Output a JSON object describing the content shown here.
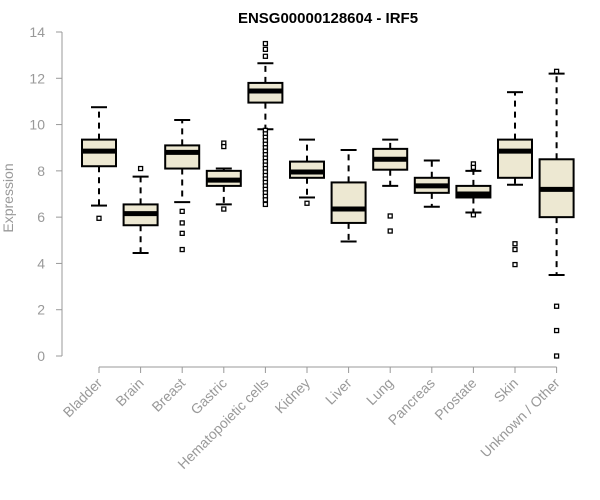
{
  "chart_data": {
    "type": "boxplot",
    "title": "ENSG00000128604 - IRF5",
    "xlabel": "",
    "ylabel": "Expression",
    "ylim": [
      0,
      14
    ],
    "yticks": [
      0,
      2,
      4,
      6,
      8,
      10,
      12,
      14
    ],
    "grid": false,
    "box_fill": "#EDE8D2",
    "box_stroke": "#000000",
    "axis_color": "#999999",
    "categories": [
      "Bladder",
      "Brain",
      "Breast",
      "Gastric",
      "Hematopoietic cells",
      "Kidney",
      "Liver",
      "Lung",
      "Pancreas",
      "Prostate",
      "Skin",
      "Unknown / Other"
    ],
    "boxes": [
      {
        "category": "Bladder",
        "whisker_low": 6.5,
        "q1": 8.2,
        "median": 8.85,
        "q3": 9.35,
        "whisker_high": 10.75,
        "outliers": [
          5.95
        ]
      },
      {
        "category": "Brain",
        "whisker_low": 4.45,
        "q1": 5.65,
        "median": 6.15,
        "q3": 6.55,
        "whisker_high": 7.75,
        "outliers": [
          8.1
        ]
      },
      {
        "category": "Breast",
        "whisker_low": 6.65,
        "q1": 8.1,
        "median": 8.8,
        "q3": 9.1,
        "whisker_high": 10.2,
        "outliers": [
          6.25,
          5.75,
          5.3,
          4.6
        ]
      },
      {
        "category": "Gastric",
        "whisker_low": 6.55,
        "q1": 7.35,
        "median": 7.6,
        "q3": 8.0,
        "whisker_high": 8.1,
        "outliers": [
          9.2,
          9.05,
          6.35
        ]
      },
      {
        "category": "Hematopoietic cells",
        "whisker_low": 9.8,
        "q1": 10.95,
        "median": 11.45,
        "q3": 11.8,
        "whisker_high": 12.65,
        "outliers": [
          13.5,
          13.25,
          12.95,
          9.75,
          9.6,
          9.45,
          9.3,
          9.15,
          9.0,
          8.85,
          8.7,
          8.55,
          8.4,
          8.25,
          8.1,
          7.95,
          7.8,
          7.65,
          7.5,
          7.35,
          7.2,
          7.05,
          6.9,
          6.75,
          6.55
        ]
      },
      {
        "category": "Kidney",
        "whisker_low": 6.85,
        "q1": 7.7,
        "median": 7.95,
        "q3": 8.4,
        "whisker_high": 9.35,
        "outliers": [
          6.6
        ]
      },
      {
        "category": "Liver",
        "whisker_low": 4.95,
        "q1": 5.75,
        "median": 6.35,
        "q3": 7.5,
        "whisker_high": 8.9,
        "outliers": []
      },
      {
        "category": "Lung",
        "whisker_low": 7.35,
        "q1": 8.05,
        "median": 8.5,
        "q3": 8.95,
        "whisker_high": 9.35,
        "outliers": [
          6.05,
          5.4
        ]
      },
      {
        "category": "Pancreas",
        "whisker_low": 6.45,
        "q1": 7.05,
        "median": 7.35,
        "q3": 7.7,
        "whisker_high": 8.45,
        "outliers": []
      },
      {
        "category": "Prostate",
        "whisker_low": 6.2,
        "q1": 6.85,
        "median": 7.0,
        "q3": 7.35,
        "whisker_high": 8.0,
        "outliers": [
          8.3,
          8.15,
          6.1
        ]
      },
      {
        "category": "Skin",
        "whisker_low": 7.4,
        "q1": 7.7,
        "median": 8.85,
        "q3": 9.35,
        "whisker_high": 11.4,
        "outliers": [
          4.85,
          4.6,
          3.95
        ]
      },
      {
        "category": "Unknown / Other",
        "whisker_low": 3.5,
        "q1": 6.0,
        "median": 7.2,
        "q3": 8.5,
        "whisker_high": 12.2,
        "outliers": [
          12.3,
          2.15,
          1.1,
          0.0
        ]
      }
    ]
  }
}
